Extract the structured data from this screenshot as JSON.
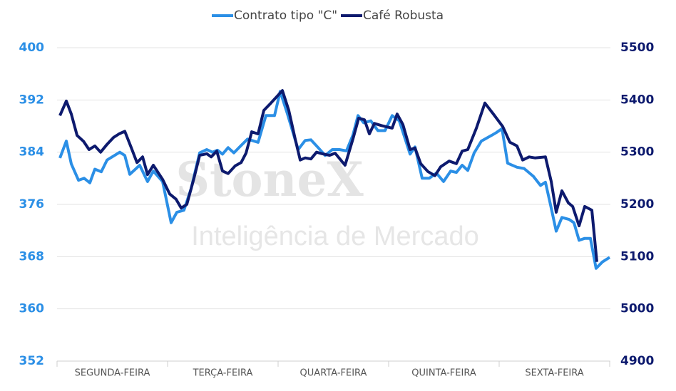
{
  "chart_data": {
    "type": "line",
    "watermark": {
      "brand": "StoneX",
      "subtitle": "Inteligência de Mercado"
    },
    "categories": [
      "SEGUNDA-FEIRA",
      "TERÇA-FEIRA",
      "QUARTA-FEIRA",
      "QUINTA-FEIRA",
      "SEXTA-FEIRA"
    ],
    "xlim": [
      0,
      5
    ],
    "xticks": [
      0,
      1,
      2,
      3,
      4,
      5
    ],
    "ylim": [
      352,
      400
    ],
    "yticks": [
      352,
      360,
      368,
      376,
      384,
      392,
      400
    ],
    "y2lim": [
      4900,
      5500
    ],
    "y2ticks": [
      4900,
      5000,
      5100,
      5200,
      5300,
      5400,
      5500
    ],
    "grid": true,
    "legend": "top",
    "series": [
      {
        "name": "Contrato tipo \"C\"",
        "color": "#2b8fe6",
        "x": [
          0.026,
          0.084,
          0.129,
          0.194,
          0.245,
          0.297,
          0.342,
          0.4,
          0.452,
          0.568,
          0.613,
          0.658,
          0.748,
          0.819,
          0.871,
          0.955,
          1.032,
          1.084,
          1.148,
          1.213,
          1.29,
          1.355,
          1.406,
          1.452,
          1.497,
          1.548,
          1.6,
          1.658,
          1.723,
          1.819,
          1.89,
          1.968,
          2.019,
          2.084,
          2.181,
          2.245,
          2.297,
          2.368,
          2.426,
          2.49,
          2.555,
          2.619,
          2.677,
          2.723,
          2.774,
          2.839,
          2.903,
          2.968,
          3.032,
          3.097,
          3.194,
          3.239,
          3.303,
          3.368,
          3.432,
          3.497,
          3.561,
          3.613,
          3.665,
          3.716,
          3.774,
          3.839,
          3.935,
          3.974,
          4.026,
          4.077,
          4.161,
          4.226,
          4.31,
          4.374,
          4.419,
          4.465,
          4.516,
          4.568,
          4.632,
          4.677,
          4.723,
          4.774,
          4.826,
          4.877,
          4.935,
          5.0
        ],
        "values": [
          383.1,
          385.7,
          382.2,
          379.7,
          380.0,
          379.3,
          381.4,
          381.0,
          382.8,
          384.0,
          383.5,
          380.6,
          382.0,
          379.5,
          381.1,
          379.5,
          373.2,
          374.8,
          375.1,
          378.4,
          383.9,
          384.4,
          384.0,
          384.3,
          383.7,
          384.7,
          383.9,
          384.9,
          386.0,
          385.5,
          389.6,
          389.6,
          393.3,
          389.9,
          384.4,
          385.8,
          385.9,
          384.6,
          383.5,
          384.4,
          384.4,
          384.2,
          386.6,
          389.6,
          388.5,
          388.8,
          387.3,
          387.3,
          389.6,
          388.8,
          383.7,
          384.8,
          380.0,
          380.0,
          380.8,
          379.5,
          381.1,
          380.9,
          382.0,
          381.2,
          383.9,
          385.7,
          386.6,
          387.0,
          387.6,
          382.3,
          381.7,
          381.5,
          380.3,
          378.9,
          379.4,
          375.9,
          371.9,
          374.0,
          373.7,
          373.2,
          370.5,
          370.8,
          370.8,
          366.2,
          367.2,
          367.9
        ]
      },
      {
        "name": "Café Robusta",
        "color": "#0d1a6e",
        "axis": "y2",
        "x": [
          0.026,
          0.084,
          0.129,
          0.181,
          0.239,
          0.29,
          0.342,
          0.394,
          0.452,
          0.51,
          0.561,
          0.613,
          0.671,
          0.723,
          0.774,
          0.819,
          0.871,
          0.955,
          1.019,
          1.077,
          1.123,
          1.174,
          1.239,
          1.29,
          1.355,
          1.394,
          1.445,
          1.497,
          1.548,
          1.613,
          1.665,
          1.71,
          1.761,
          1.819,
          1.871,
          1.935,
          2.0,
          2.039,
          2.097,
          2.155,
          2.2,
          2.245,
          2.297,
          2.348,
          2.4,
          2.465,
          2.516,
          2.606,
          2.677,
          2.729,
          2.781,
          2.826,
          2.871,
          2.935,
          3.032,
          3.077,
          3.129,
          3.194,
          3.239,
          3.29,
          3.355,
          3.419,
          3.471,
          3.548,
          3.613,
          3.665,
          3.716,
          3.794,
          3.871,
          3.948,
          4.032,
          4.097,
          4.161,
          4.213,
          4.271,
          4.323,
          4.419,
          4.471,
          4.516,
          4.568,
          4.626,
          4.665,
          4.723,
          4.774,
          4.839,
          4.884
        ],
        "values": [
          5370,
          5398,
          5373,
          5332,
          5321,
          5305,
          5312,
          5300,
          5315,
          5328,
          5335,
          5340,
          5309,
          5280,
          5291,
          5257,
          5275,
          5248,
          5220,
          5210,
          5193,
          5200,
          5250,
          5294,
          5297,
          5291,
          5302,
          5264,
          5259,
          5274,
          5280,
          5298,
          5339,
          5335,
          5380,
          5394,
          5409,
          5418,
          5380,
          5325,
          5285,
          5289,
          5287,
          5300,
          5297,
          5294,
          5298,
          5275,
          5325,
          5365,
          5362,
          5335,
          5355,
          5351,
          5346,
          5373,
          5353,
          5305,
          5308,
          5278,
          5263,
          5255,
          5272,
          5283,
          5278,
          5302,
          5305,
          5346,
          5394,
          5373,
          5349,
          5319,
          5312,
          5285,
          5291,
          5289,
          5291,
          5244,
          5185,
          5226,
          5203,
          5196,
          5159,
          5196,
          5189,
          5090
        ]
      }
    ]
  }
}
